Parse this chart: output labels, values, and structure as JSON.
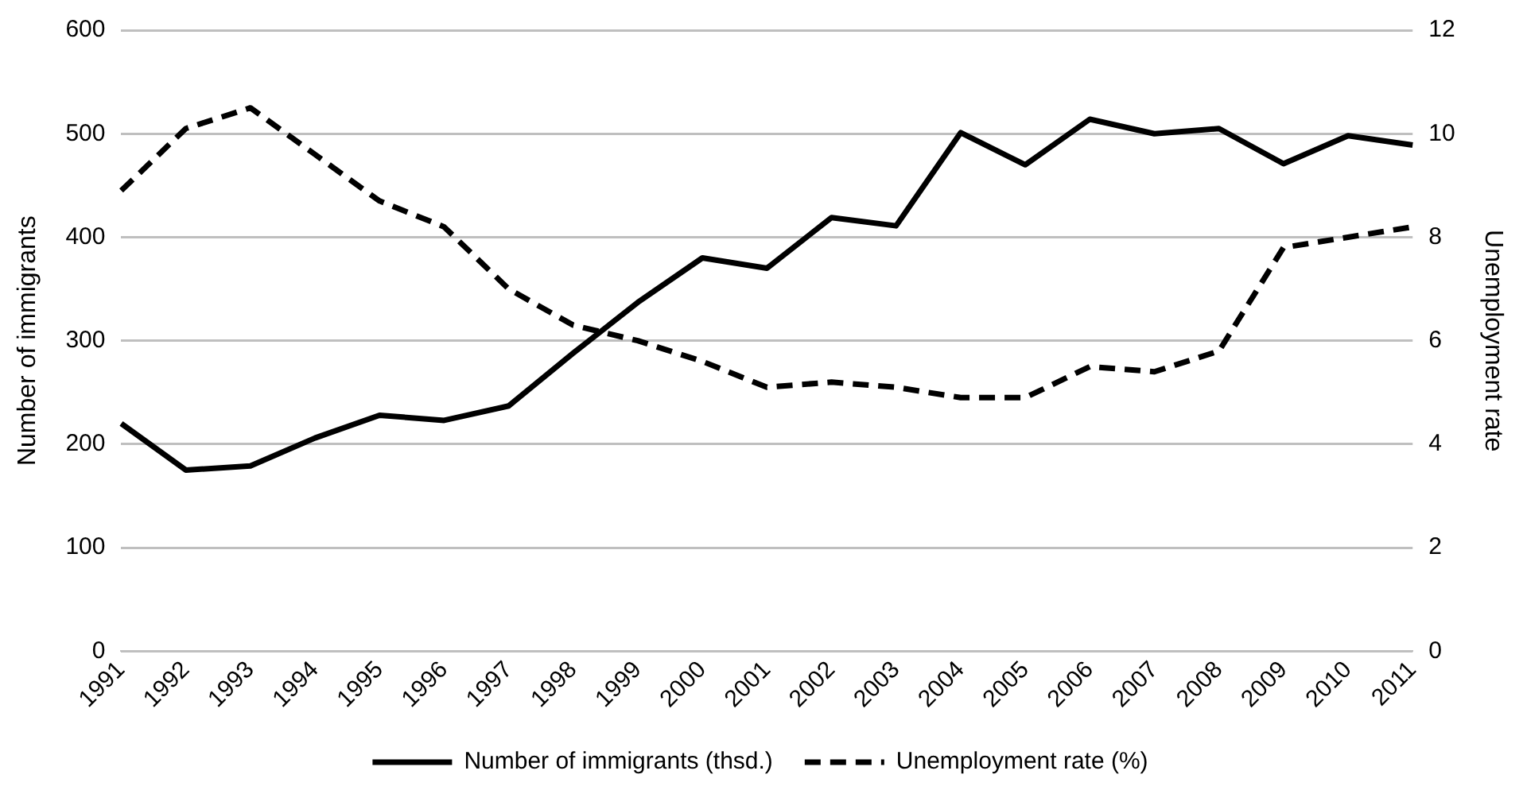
{
  "chart_data": {
    "type": "line",
    "categories": [
      "1991",
      "1992",
      "1993",
      "1994",
      "1995",
      "1996",
      "1997",
      "1998",
      "1999",
      "2000",
      "2001",
      "2002",
      "2003",
      "2004",
      "2005",
      "2006",
      "2007",
      "2008",
      "2009",
      "2010",
      "2011"
    ],
    "ylabel": "Number of immigrants",
    "y2label": "Unemployment rate",
    "ylim": [
      0,
      600
    ],
    "yticks": [
      0,
      100,
      200,
      300,
      400,
      500,
      600
    ],
    "y2lim": [
      0,
      12
    ],
    "y2ticks": [
      0,
      2,
      4,
      6,
      8,
      10,
      12
    ],
    "grid": "y",
    "legend": "bottom",
    "marker": "none",
    "series": [
      {
        "name": "Number of immigrants (thsd.)",
        "color": "#000000",
        "line_style": "solid",
        "values": [
          220,
          175,
          179,
          206,
          228,
          223,
          237,
          288,
          337,
          380,
          370,
          419,
          411,
          501,
          470,
          514,
          500,
          505,
          471,
          498,
          489
        ]
      },
      {
        "name": "Unemployment rate (%)",
        "color": "#000000",
        "line_style": "dashed",
        "axis": "y2",
        "values": [
          8.9,
          10.1,
          10.5,
          9.6,
          8.7,
          8.2,
          7.0,
          6.3,
          6.0,
          5.6,
          5.1,
          5.2,
          5.1,
          4.9,
          4.9,
          5.5,
          5.4,
          5.8,
          7.8,
          8.0,
          8.2
        ]
      }
    ]
  }
}
